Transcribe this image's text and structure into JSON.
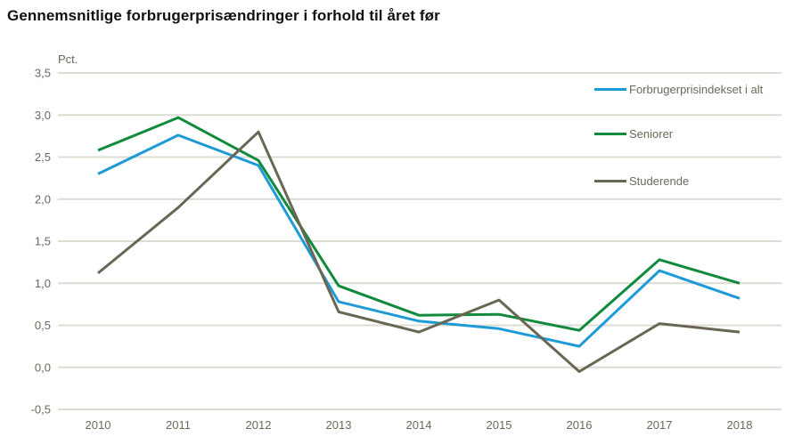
{
  "chart_data": {
    "type": "line",
    "title": "Gennemsnitlige forbrugerprisændringer i forhold til året før",
    "ylabel": "Pct.",
    "xlabel": "",
    "x": [
      2010,
      2011,
      2012,
      2013,
      2014,
      2015,
      2016,
      2017,
      2018
    ],
    "series": [
      {
        "name": "Forbrugerprisindekset i alt",
        "color": "#1e9ad6",
        "values": [
          2.3,
          2.76,
          2.4,
          0.78,
          0.55,
          0.46,
          0.25,
          1.15,
          0.82
        ]
      },
      {
        "name": "Seniorer",
        "color": "#108a3b",
        "values": [
          2.58,
          2.97,
          2.46,
          0.97,
          0.62,
          0.63,
          0.44,
          1.28,
          1.0
        ]
      },
      {
        "name": "Studerende",
        "color": "#696654",
        "values": [
          1.12,
          1.9,
          2.8,
          0.66,
          0.42,
          0.8,
          -0.05,
          0.52,
          0.42
        ]
      }
    ],
    "ylim": [
      -0.5,
      3.5
    ],
    "ytick_values": [
      3.5,
      3.0,
      2.5,
      2.0,
      1.5,
      1.0,
      0.5,
      0.0,
      -0.5
    ],
    "ytick_labels": [
      "3,5",
      "3,0",
      "2,5",
      "2,0",
      "1,5",
      "1,0",
      "0,5",
      "0,0",
      "-0,5"
    ],
    "grid": true,
    "legend_position": "top-right",
    "colors": {
      "grid": "#dcdcd4",
      "axis_text": "#6b6959",
      "title_text": "#111111",
      "background": "#ffffff"
    }
  }
}
